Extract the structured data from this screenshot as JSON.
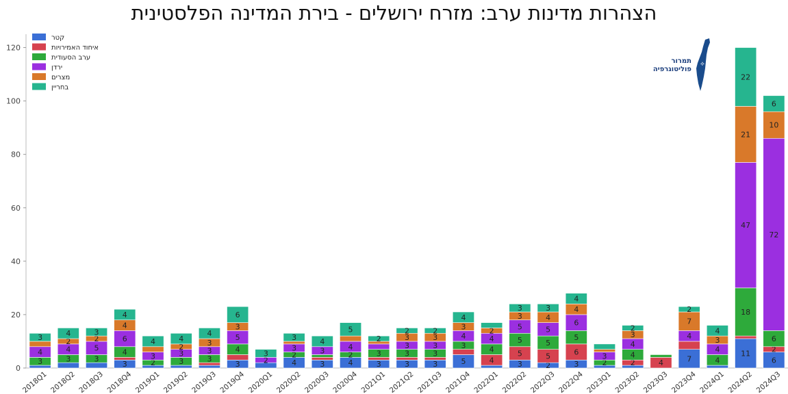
{
  "title": "הצהרות מדינות ערב: מזרח ירושלים - בירת המדינה הפלסטינית",
  "logo": {
    "line1": "תמרור",
    "line2": "פוליטוגרפיה"
  },
  "colors": {
    "qatar": "#3b6fd6",
    "uae": "#d6424f",
    "saudi": "#2eaa3b",
    "jordan": "#9b2fe0",
    "egypt": "#d9792a",
    "bahrain": "#26b58f"
  },
  "chart_data": {
    "type": "bar",
    "stacked": true,
    "categories": [
      "2018Q1",
      "2018Q2",
      "2018Q3",
      "2018Q4",
      "2019Q1",
      "2019Q2",
      "2019Q3",
      "2019Q4",
      "2020Q1",
      "2020Q2",
      "2020Q3",
      "2020Q4",
      "2021Q1",
      "2021Q2",
      "2021Q3",
      "2021Q4",
      "2022Q1",
      "2022Q2",
      "2022Q3",
      "2022Q4",
      "2023Q1",
      "2023Q2",
      "2023Q3",
      "2023Q4",
      "2024Q1",
      "2024Q2",
      "2024Q3"
    ],
    "series": [
      {
        "name": "קטר",
        "color_key": "qatar",
        "values": [
          1,
          2,
          2,
          3,
          1,
          1,
          1,
          3,
          2,
          4,
          3,
          4,
          3,
          3,
          3,
          5,
          1,
          3,
          2,
          3,
          1,
          1,
          0,
          7,
          1,
          11,
          6
        ]
      },
      {
        "name": "איחוד האמירויות",
        "color_key": "uae",
        "values": [
          0,
          0,
          0,
          1,
          0,
          0,
          1,
          2,
          0,
          0,
          1,
          0,
          1,
          1,
          1,
          2,
          4,
          5,
          5,
          6,
          0,
          2,
          4,
          3,
          0,
          1,
          2
        ]
      },
      {
        "name": "ערב הסעודית",
        "color_key": "saudi",
        "values": [
          3,
          3,
          3,
          4,
          2,
          3,
          3,
          4,
          0,
          2,
          1,
          2,
          3,
          3,
          3,
          3,
          4,
          5,
          5,
          5,
          2,
          4,
          1,
          0,
          4,
          18,
          6
        ]
      },
      {
        "name": "ירדן",
        "color_key": "jordan",
        "values": [
          4,
          4,
          5,
          6,
          3,
          3,
          3,
          5,
          2,
          3,
          3,
          4,
          2,
          3,
          3,
          4,
          4,
          5,
          5,
          6,
          3,
          4,
          0,
          4,
          4,
          47,
          72
        ]
      },
      {
        "name": "מצרים",
        "color_key": "egypt",
        "values": [
          2,
          2,
          2,
          4,
          2,
          2,
          3,
          3,
          0,
          1,
          0,
          2,
          1,
          3,
          3,
          3,
          2,
          3,
          4,
          4,
          1,
          3,
          0,
          7,
          3,
          21,
          10
        ]
      },
      {
        "name": "בחריין",
        "color_key": "bahrain",
        "values": [
          3,
          4,
          3,
          4,
          4,
          4,
          4,
          6,
          3,
          3,
          4,
          5,
          2,
          2,
          2,
          4,
          2,
          3,
          3,
          4,
          2,
          2,
          0,
          2,
          4,
          22,
          6
        ]
      }
    ],
    "labels_visible": [
      [
        0,
        0,
        0,
        1,
        0,
        0,
        0,
        1,
        0,
        1,
        1,
        1,
        1,
        1,
        1,
        1,
        0,
        1,
        1,
        1,
        0,
        0,
        0,
        1,
        0,
        1,
        1
      ],
      [
        0,
        0,
        0,
        0,
        0,
        0,
        0,
        0,
        0,
        0,
        0,
        0,
        0,
        0,
        0,
        0,
        1,
        1,
        1,
        1,
        0,
        1,
        1,
        0,
        0,
        0,
        1
      ],
      [
        1,
        1,
        1,
        1,
        1,
        1,
        1,
        1,
        0,
        1,
        0,
        1,
        1,
        1,
        1,
        1,
        1,
        1,
        1,
        1,
        1,
        1,
        0,
        0,
        1,
        1,
        1
      ],
      [
        1,
        1,
        1,
        1,
        1,
        1,
        1,
        1,
        1,
        1,
        1,
        1,
        0,
        1,
        1,
        1,
        1,
        1,
        1,
        1,
        1,
        1,
        0,
        1,
        1,
        1,
        1
      ],
      [
        0,
        1,
        1,
        1,
        0,
        1,
        1,
        1,
        0,
        0,
        0,
        0,
        0,
        1,
        1,
        1,
        1,
        1,
        1,
        1,
        0,
        1,
        0,
        1,
        1,
        1,
        1
      ],
      [
        1,
        1,
        1,
        1,
        1,
        1,
        1,
        1,
        1,
        1,
        1,
        1,
        1,
        1,
        1,
        1,
        0,
        1,
        1,
        1,
        0,
        1,
        0,
        1,
        1,
        1,
        1
      ]
    ],
    "xlabel": "",
    "ylabel": "",
    "ylim": [
      0,
      125
    ],
    "yticks": [
      0,
      20,
      40,
      60,
      80,
      100,
      120
    ],
    "legend_position": "top-left"
  }
}
